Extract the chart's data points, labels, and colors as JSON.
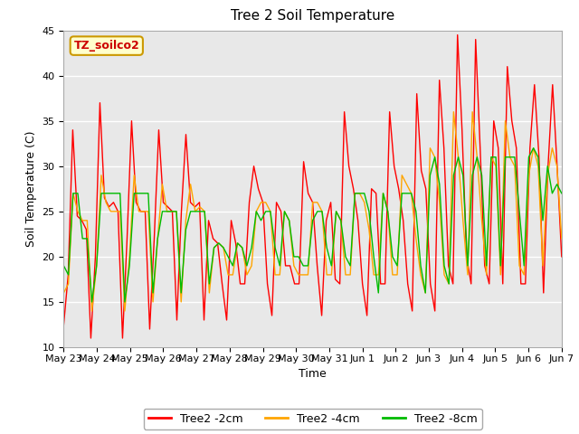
{
  "title": "Tree 2 Soil Temperature",
  "xlabel": "Time",
  "ylabel": "Soil Temperature (C)",
  "ylim": [
    10,
    45
  ],
  "yticks": [
    10,
    15,
    20,
    25,
    30,
    35,
    40,
    45
  ],
  "xtick_labels": [
    "May 23",
    "May 24",
    "May 25",
    "May 26",
    "May 27",
    "May 28",
    "May 29",
    "May 30",
    "May 31",
    "Jun 1",
    "Jun 2",
    "Jun 3",
    "Jun 4",
    "Jun 5",
    "Jun 6",
    "Jun 7"
  ],
  "watermark": "TZ_soilco2",
  "colors": {
    "2cm": "#ff0000",
    "4cm": "#ffa500",
    "8cm": "#00bb00"
  },
  "legend_labels": [
    "Tree2 -2cm",
    "Tree2 -4cm",
    "Tree2 -8cm"
  ],
  "plot_bg": "#e8e8e8",
  "series_2cm": [
    12.5,
    18,
    34,
    24.5,
    24,
    23,
    11,
    20,
    37,
    26.5,
    25.5,
    26,
    25,
    11,
    22,
    35,
    26,
    25,
    25,
    12,
    22,
    34,
    26,
    25.5,
    25,
    13,
    25,
    33.5,
    26,
    25.5,
    26,
    13,
    24,
    22,
    21.5,
    17,
    13,
    24,
    21.5,
    17,
    17,
    26,
    30,
    27.5,
    26,
    17,
    13.5,
    26,
    25,
    19,
    19,
    17,
    17,
    30.5,
    27,
    26,
    19,
    13.5,
    24,
    26,
    17.5,
    17,
    36,
    30,
    27.5,
    24,
    17,
    13.5,
    27.5,
    27,
    17,
    17,
    36,
    30,
    27.5,
    24,
    17,
    14,
    38,
    29.5,
    27.5,
    17,
    14,
    39.5,
    32,
    19,
    17,
    44.5,
    34,
    20,
    17,
    44,
    32,
    19,
    17,
    35,
    32,
    17,
    41,
    35,
    32,
    17,
    17,
    32,
    39,
    31,
    16,
    30,
    39,
    30,
    20
  ],
  "series_4cm": [
    16,
    17,
    27,
    25,
    24,
    24,
    14,
    19,
    29,
    26,
    25,
    25,
    25,
    14,
    20,
    29,
    25,
    25,
    25,
    15,
    22,
    28,
    25,
    25,
    25,
    15,
    24,
    28,
    25,
    25.5,
    25,
    16,
    21,
    21.5,
    21,
    18,
    18,
    21.5,
    21,
    18,
    19,
    25,
    26,
    26,
    25,
    18,
    18,
    25,
    24,
    19,
    18,
    18,
    18,
    26,
    26,
    25,
    18,
    18,
    25,
    24,
    18,
    18,
    27,
    27,
    26,
    23,
    18,
    18,
    27,
    25,
    18,
    18,
    29,
    28,
    27,
    22,
    18,
    16,
    32,
    31,
    26,
    18,
    17,
    36,
    31,
    24,
    18,
    36,
    31,
    24,
    18,
    31,
    30,
    18,
    35,
    31,
    30,
    19,
    18,
    29,
    32,
    30,
    19,
    29,
    32,
    30,
    22
  ],
  "series_8cm": [
    19,
    18,
    27,
    27,
    22,
    22,
    15,
    19,
    27,
    27,
    27,
    27,
    27,
    15,
    19,
    27,
    27,
    27,
    27,
    16,
    22,
    25,
    25,
    25,
    25,
    16,
    23,
    25,
    25,
    25,
    25,
    17,
    21,
    21.5,
    21,
    20,
    19,
    21.5,
    21,
    19,
    21,
    25,
    24,
    25,
    25,
    21,
    19,
    25,
    24,
    20,
    20,
    19,
    19,
    24,
    25,
    25,
    21,
    19,
    25,
    24,
    20,
    19,
    27,
    27,
    27,
    25,
    20,
    16,
    27,
    25,
    20,
    19,
    27,
    27,
    27,
    25,
    19,
    16,
    29,
    31,
    28,
    19,
    17,
    29,
    31,
    29,
    19,
    29,
    31,
    29,
    19,
    31,
    31,
    19,
    31,
    31,
    31,
    25,
    19,
    31,
    32,
    31,
    24,
    30,
    27,
    28,
    27
  ]
}
